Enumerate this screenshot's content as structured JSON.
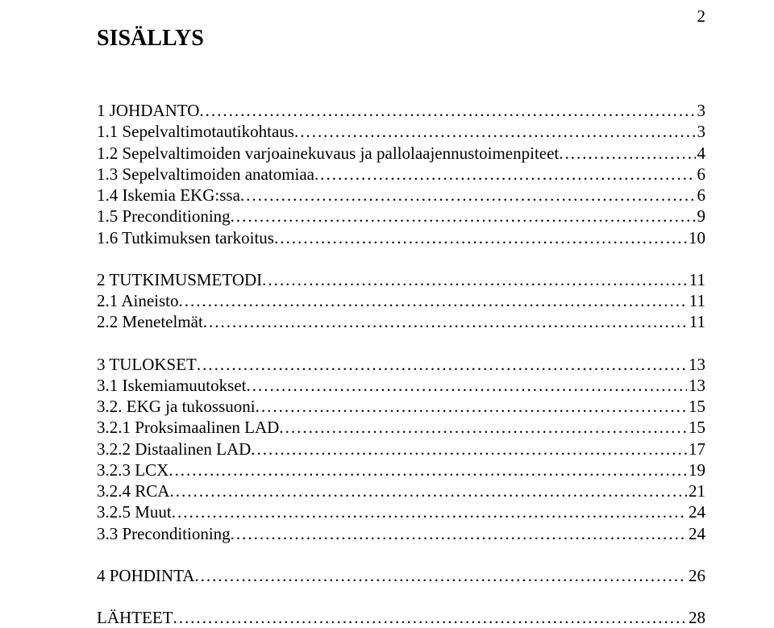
{
  "page_number": "2",
  "heading": "SISÄLLYS",
  "font": {
    "family": "Times New Roman",
    "heading_size_pt": 21,
    "body_size_pt": 16,
    "color": "#000000",
    "background": "#ffffff"
  },
  "toc": {
    "groups": [
      [
        {
          "label": "1 JOHDANTO",
          "page": "3"
        },
        {
          "label": "1.1 Sepelvaltimotautikohtaus",
          "page": "3"
        },
        {
          "label": "1.2 Sepelvaltimoiden varjoainekuvaus ja pallolaajennustoimenpiteet",
          "page": "4"
        },
        {
          "label": "1.3 Sepelvaltimoiden anatomiaa",
          "page": "6"
        },
        {
          "label": "1.4 Iskemia EKG:ssa",
          "page": "6"
        },
        {
          "label": "1.5 Preconditioning",
          "page": "9"
        },
        {
          "label": "1.6 Tutkimuksen tarkoitus",
          "page": "10"
        }
      ],
      [
        {
          "label": "2 TUTKIMUSMETODI",
          "page": "11"
        },
        {
          "label": "2.1 Aineisto",
          "page": "11"
        },
        {
          "label": "2.2 Menetelmät",
          "page": "11"
        }
      ],
      [
        {
          "label": "3 TULOKSET",
          "page": "13"
        },
        {
          "label": "3.1 Iskemiamuutokset",
          "page": "13"
        },
        {
          "label": "3.2. EKG ja tukossuoni",
          "page": "15"
        },
        {
          "label": "3.2.1 Proksimaalinen LAD",
          "page": "15"
        },
        {
          "label": "3.2.2 Distaalinen LAD",
          "page": "17"
        },
        {
          "label": "3.2.3 LCX",
          "page": "19"
        },
        {
          "label": "3.2.4 RCA",
          "page": "21"
        },
        {
          "label": "3.2.5 Muut",
          "page": "24"
        },
        {
          "label": "3.3 Preconditioning",
          "page": "24"
        }
      ],
      [
        {
          "label": "4 POHDINTA",
          "page": "26"
        }
      ],
      [
        {
          "label": "LÄHTEET",
          "page": "28"
        }
      ]
    ]
  }
}
